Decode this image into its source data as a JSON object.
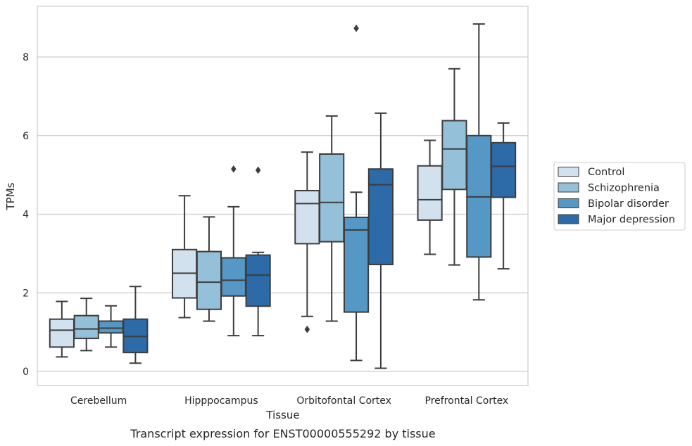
{
  "chart_data": {
    "type": "boxplot",
    "xlabel": "Tissue",
    "ylabel": "TPMs",
    "caption": "Transcript expression for ENST00000555292 by tissue",
    "ylim": [
      -0.3,
      9.3
    ],
    "yticks": [
      0,
      2,
      4,
      6,
      8
    ],
    "grid": "horizontal",
    "legend_position": "right",
    "categories": [
      "Cerebellum",
      "Hipppocampus",
      "Orbitofontal Cortex",
      "Prefrontal Cortex"
    ],
    "series": [
      {
        "name": "Control",
        "color": "#d1e1ee",
        "boxes": [
          {
            "whisker_low": 0.37,
            "q1": 0.62,
            "median": 1.05,
            "q3": 1.33,
            "whisker_high": 1.78,
            "outliers": []
          },
          {
            "whisker_low": 1.37,
            "q1": 1.87,
            "median": 2.5,
            "q3": 3.1,
            "whisker_high": 4.47,
            "outliers": []
          },
          {
            "whisker_low": 1.4,
            "q1": 3.25,
            "median": 4.27,
            "q3": 4.6,
            "whisker_high": 5.58,
            "outliers": [
              1.07
            ]
          },
          {
            "whisker_low": 2.98,
            "q1": 3.85,
            "median": 4.37,
            "q3": 5.23,
            "whisker_high": 5.88,
            "outliers": []
          }
        ]
      },
      {
        "name": "Schizophrenia",
        "color": "#95c0d9",
        "boxes": [
          {
            "whisker_low": 0.53,
            "q1": 0.84,
            "median": 1.08,
            "q3": 1.42,
            "whisker_high": 1.86,
            "outliers": []
          },
          {
            "whisker_low": 1.28,
            "q1": 1.58,
            "median": 2.27,
            "q3": 3.05,
            "whisker_high": 3.93,
            "outliers": []
          },
          {
            "whisker_low": 1.28,
            "q1": 3.3,
            "median": 4.3,
            "q3": 5.53,
            "whisker_high": 6.5,
            "outliers": []
          },
          {
            "whisker_low": 2.71,
            "q1": 4.63,
            "median": 5.66,
            "q3": 6.38,
            "whisker_high": 7.7,
            "outliers": []
          }
        ]
      },
      {
        "name": "Bipolar disorder",
        "color": "#5598c5",
        "boxes": [
          {
            "whisker_low": 0.62,
            "q1": 0.98,
            "median": 1.1,
            "q3": 1.28,
            "whisker_high": 1.67,
            "outliers": []
          },
          {
            "whisker_low": 0.91,
            "q1": 1.92,
            "median": 2.32,
            "q3": 2.89,
            "whisker_high": 4.19,
            "outliers": [
              5.15
            ]
          },
          {
            "whisker_low": 0.28,
            "q1": 1.51,
            "median": 3.6,
            "q3": 3.92,
            "whisker_high": 4.56,
            "outliers": [
              8.73
            ]
          },
          {
            "whisker_low": 1.82,
            "q1": 2.91,
            "median": 4.44,
            "q3": 6.0,
            "whisker_high": 8.84,
            "outliers": []
          }
        ]
      },
      {
        "name": "Major depression",
        "color": "#2d6aa8",
        "boxes": [
          {
            "whisker_low": 0.21,
            "q1": 0.48,
            "median": 0.89,
            "q3": 1.33,
            "whisker_high": 2.16,
            "outliers": []
          },
          {
            "whisker_low": 0.91,
            "q1": 1.66,
            "median": 2.45,
            "q3": 2.96,
            "whisker_high": 3.03,
            "outliers": [
              5.12
            ]
          },
          {
            "whisker_low": 0.08,
            "q1": 2.72,
            "median": 4.75,
            "q3": 5.15,
            "whisker_high": 6.57,
            "outliers": []
          },
          {
            "whisker_low": 2.61,
            "q1": 4.43,
            "median": 5.22,
            "q3": 5.82,
            "whisker_high": 6.32,
            "outliers": []
          }
        ]
      }
    ]
  }
}
